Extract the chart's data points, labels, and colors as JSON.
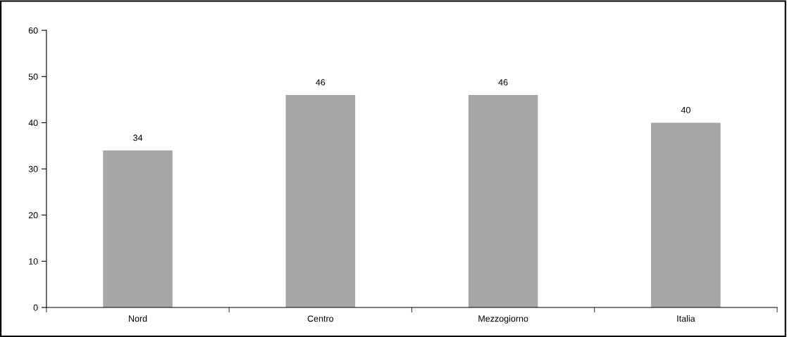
{
  "chart_data": {
    "type": "bar",
    "categories": [
      "Nord",
      "Centro",
      "Mezzogiorno",
      "Italia"
    ],
    "values": [
      34,
      46,
      46,
      40
    ],
    "color": "#a6a6a6",
    "ylim": [
      0,
      60
    ],
    "yticks": [
      0,
      10,
      20,
      30,
      40,
      50,
      60
    ],
    "data_labels": true,
    "grid": false,
    "legend": false
  }
}
